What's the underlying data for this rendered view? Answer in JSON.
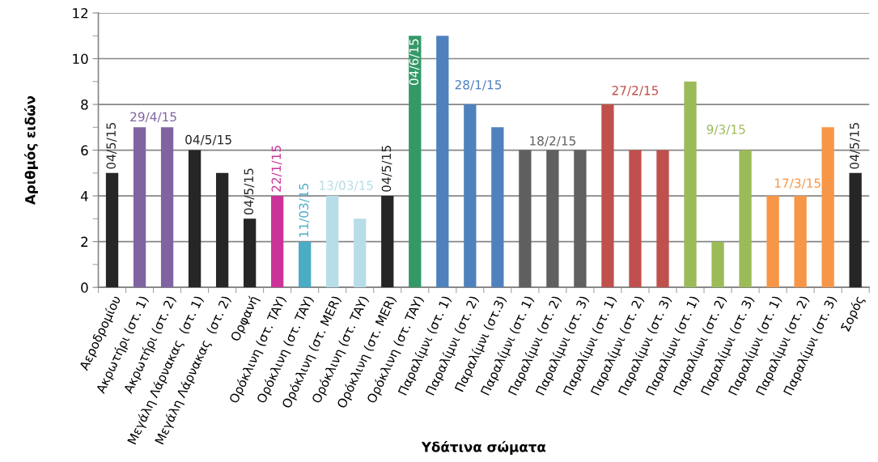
{
  "chart_data": {
    "type": "bar",
    "xlabel": "Υδάτινα σώματα",
    "ylabel": "Αριθμός ειδών",
    "categories": [
      "Αεροδρομίου",
      "Ακρωτήρι (στ. 1)",
      "Ακρωτήρι (στ. 2)",
      "Μεγάλη Λάρνακας  (στ. 1)",
      "Μεγάλη Λάρνακας  (στ. 2)",
      "Ορφανή",
      "Ορόκλινη (στ. TAY)",
      "Ορόκλινη (στ. TAY)",
      "Ορόκλινη (στ. MER)",
      "Ορόκλινη (στ. TAY)",
      "Ορόκλινη (στ. MER)",
      "Ορόκλινη (στ. TAY)",
      "Παραλίμνι (στ. 1)",
      "Παραλίμνι (στ. 2)",
      "Παραλίμνι (στ.3)",
      "Παραλίμνι (στ. 1)",
      "Παραλίμνι (στ. 2)",
      "Παραλίμνι (στ. 3)",
      "Παραλίμνι (στ. 1)",
      "Παραλίμνι (στ. 2)",
      "Παραλίμνι (στ. 3)",
      "Παραλίμνι (στ. 1)",
      "Παραλίμνι (στ. 2)",
      "Παραλίμνι (στ. 3)",
      "Παραλίμνι (στ. 1)",
      "Παραλίμνι (στ. 2)",
      "Παραλίμνι (στ. 3)",
      "Σορός"
    ],
    "values": [
      5,
      7,
      7,
      6,
      5,
      3,
      4,
      2,
      4,
      3,
      4,
      11,
      11,
      8,
      7,
      6,
      6,
      6,
      8,
      6,
      6,
      9,
      2,
      6,
      4,
      4,
      7,
      5
    ],
    "colors": [
      "#262626",
      "#8064a2",
      "#8064a2",
      "#262626",
      "#262626",
      "#262626",
      "#cc3399",
      "#4bacc6",
      "#b7dde8",
      "#b7dde8",
      "#262626",
      "#339966",
      "#4f81bd",
      "#4f81bd",
      "#4f81bd",
      "#606060",
      "#606060",
      "#606060",
      "#c0504d",
      "#c0504d",
      "#c0504d",
      "#9bbb59",
      "#9bbb59",
      "#9bbb59",
      "#f79646",
      "#f79646",
      "#f79646",
      "#262626"
    ],
    "ylim": [
      0,
      12
    ],
    "yticks": [
      0,
      2,
      4,
      6,
      8,
      10,
      12
    ],
    "grid": "y",
    "legend": false,
    "annotations": [
      {
        "text": "04/5/15",
        "x": "Αεροδρομίου",
        "y": 5
      },
      {
        "text": "29/4/15",
        "x": "Ακρωτήρι (στ. 1)",
        "y": 7
      },
      {
        "text": "04/5/15",
        "x": "Μεγάλη Λάρνακας  (στ. 1)",
        "y": 6
      },
      {
        "text": "04/5/15",
        "x": "Ορφανή",
        "y": 3
      },
      {
        "text": "22/1/15",
        "x": "Ορόκλινη (στ. TAY)",
        "y": 4
      },
      {
        "text": "11/03/15",
        "x": "Ορόκλινη (στ. TAY)",
        "y": 2
      },
      {
        "text": "13/03/15",
        "x": "Ορόκλινη (στ. MER)",
        "y": 4
      },
      "04/5/15",
      "04/6/15",
      "28/1/15",
      "18/2/15",
      "27/2/15",
      "9/3/15",
      "17/3/15",
      {
        "text": "04/5/15",
        "x": "Σορός",
        "y": 5
      }
    ]
  }
}
